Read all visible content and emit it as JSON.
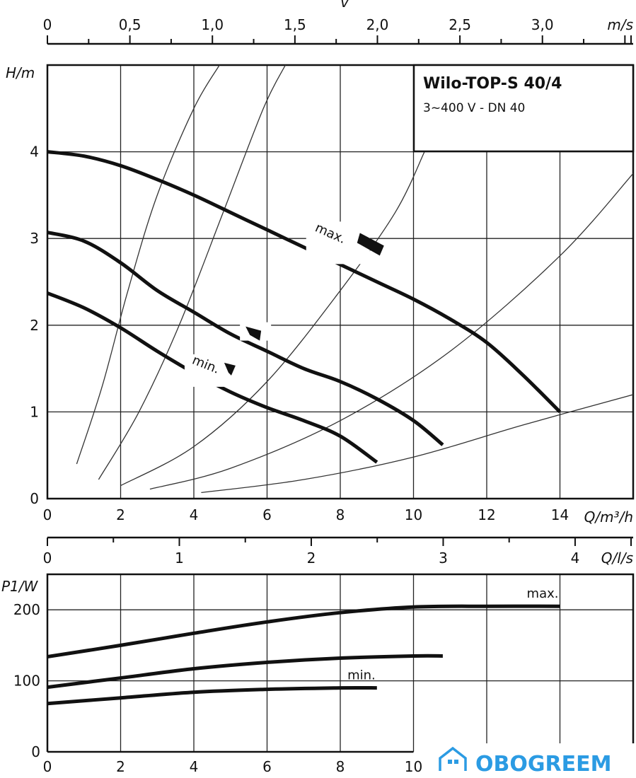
{
  "watermark": {
    "text": "OBOGREEM",
    "color": "#2b9be3"
  },
  "chart_data": [
    {
      "type": "line",
      "title": "Wilo-TOP-S 40/4",
      "subtitle": "3~400 V - DN 40",
      "xlabel": "Q/m³/h",
      "ylabel": "H/m",
      "xlim": [
        0,
        16
      ],
      "ylim": [
        0,
        5
      ],
      "x_ticks": [
        "0",
        "2",
        "4",
        "6",
        "8",
        "10",
        "12",
        "14"
      ],
      "y_ticks": [
        "0",
        "1",
        "2",
        "3",
        "4"
      ],
      "grid": true,
      "top_axis": {
        "label": "m/s",
        "symbol": "v",
        "ticks": [
          "0",
          "0,5",
          "1,0",
          "1,5",
          "2,0",
          "2,5",
          "3,0"
        ],
        "values": [
          0,
          0.5,
          1.0,
          1.5,
          2.0,
          2.5,
          3.0
        ],
        "max": 3.55
      },
      "series": [
        {
          "name": "max.",
          "x": [
            0,
            1,
            2,
            3,
            4,
            5,
            6,
            7,
            8,
            9,
            10,
            11,
            12,
            13,
            14
          ],
          "y": [
            4.0,
            3.95,
            3.84,
            3.68,
            3.5,
            3.3,
            3.1,
            2.9,
            2.7,
            2.5,
            2.3,
            2.07,
            1.8,
            1.42,
            1.0
          ]
        },
        {
          "name": "",
          "x": [
            0,
            1,
            2,
            3,
            4,
            5,
            6,
            7,
            8,
            9,
            10,
            10.8
          ],
          "y": [
            3.07,
            2.97,
            2.72,
            2.4,
            2.15,
            1.9,
            1.7,
            1.5,
            1.35,
            1.15,
            0.9,
            0.62
          ]
        },
        {
          "name": "min.",
          "x": [
            0,
            1,
            2,
            3,
            4,
            5,
            6,
            7,
            8,
            9
          ],
          "y": [
            2.37,
            2.2,
            1.97,
            1.7,
            1.45,
            1.23,
            1.05,
            0.9,
            0.72,
            0.42
          ]
        }
      ],
      "system_curves": [
        {
          "x": [
            0.8,
            1.5,
            2.2,
            3.0,
            4.0,
            4.7
          ],
          "y": [
            0.4,
            1.3,
            2.4,
            3.5,
            4.5,
            5.0
          ]
        },
        {
          "x": [
            1.4,
            2.5,
            3.6,
            4.8,
            5.9,
            6.5
          ],
          "y": [
            0.22,
            1.0,
            2.0,
            3.3,
            4.5,
            5.0
          ]
        },
        {
          "x": [
            2.0,
            4.0,
            6.0,
            8.0,
            9.5,
            10.3
          ],
          "y": [
            0.15,
            0.6,
            1.35,
            2.4,
            3.3,
            4.0
          ]
        },
        {
          "x": [
            2.8,
            5.0,
            8.0,
            11.0,
            14.0,
            16.0
          ],
          "y": [
            0.11,
            0.35,
            0.9,
            1.7,
            2.8,
            3.75
          ]
        },
        {
          "x": [
            4.2,
            7.0,
            10.0,
            13.0,
            16.0
          ],
          "y": [
            0.07,
            0.22,
            0.48,
            0.85,
            1.2
          ]
        }
      ],
      "speed_markers": [
        {
          "x": 7.3,
          "y": 2.95,
          "label": "max."
        },
        {
          "x": 5.8,
          "y": 1.92,
          "label": ""
        },
        {
          "x": 5.1,
          "y": 1.42,
          "label": "min."
        }
      ]
    },
    {
      "type": "line",
      "xlabel": "Q/l/s",
      "ylabel": "P1/W",
      "xlim": [
        0,
        4.44
      ],
      "x_ticks": [
        "0",
        "1",
        "2",
        "3",
        "4"
      ],
      "x_values": [
        0,
        1,
        2,
        3,
        4
      ]
    },
    {
      "type": "line",
      "xlabel": "",
      "ylabel": "P1/W",
      "xlim": [
        0,
        16
      ],
      "ylim": [
        0,
        250
      ],
      "x_ticks": [
        "0",
        "2",
        "4",
        "6",
        "8",
        "10"
      ],
      "y_ticks": [
        "0",
        "100",
        "200"
      ],
      "grid": true,
      "series": [
        {
          "name": "max.",
          "x": [
            0,
            2,
            4,
            6,
            8,
            10,
            12,
            14
          ],
          "y": [
            134,
            150,
            167,
            183,
            196,
            204,
            205,
            205
          ]
        },
        {
          "name": "",
          "x": [
            0,
            2,
            4,
            6,
            8,
            10,
            10.8
          ],
          "y": [
            91,
            104,
            117,
            126,
            132,
            135,
            135
          ]
        },
        {
          "name": "min.",
          "x": [
            0,
            2,
            4,
            6,
            8,
            9
          ],
          "y": [
            68,
            76,
            84,
            88,
            90,
            90
          ]
        }
      ]
    }
  ]
}
